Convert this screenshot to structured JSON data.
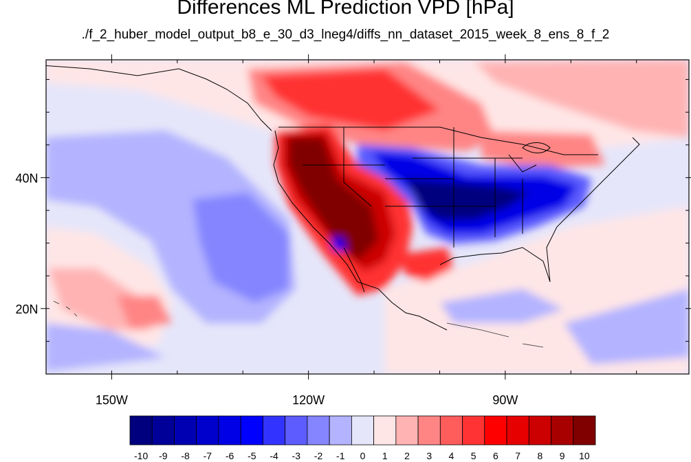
{
  "title": "Differences ML Prediction VPD [hPa]",
  "subtitle": "./f_2_huber_model_output_b8_e_30_d3_lneg4/diffs_nn_dataset_2015_week_8_ens_8_f_2",
  "map": {
    "lon_range": [
      -160,
      -62
    ],
    "lat_range": [
      10,
      58
    ],
    "x_ticks": [
      {
        "value": -150,
        "label": "150W"
      },
      {
        "value": -120,
        "label": "120W"
      },
      {
        "value": -90,
        "label": "90W"
      }
    ],
    "y_ticks": [
      {
        "value": 20,
        "label": "20N"
      },
      {
        "value": 40,
        "label": "40N"
      }
    ]
  },
  "colorbar": {
    "labels": [
      "-10",
      "-9",
      "-8",
      "-7",
      "-6",
      "-5",
      "-4",
      "-3",
      "-2",
      "-1",
      "0",
      "1",
      "2",
      "3",
      "4",
      "5",
      "6",
      "7",
      "8",
      "9",
      "10"
    ],
    "colors": [
      "#00007f",
      "#000099",
      "#0000b3",
      "#0000cc",
      "#0000e6",
      "#0000ff",
      "#3333ff",
      "#5c5cff",
      "#8585ff",
      "#b3b3ff",
      "#e6e6fa",
      "#ffe6e6",
      "#ffb3b3",
      "#ff8585",
      "#ff5c5c",
      "#ff3333",
      "#ff0000",
      "#e60000",
      "#cc0000",
      "#a80000",
      "#800000"
    ]
  },
  "colors": {
    "neutral_pos": "#ffe6e6",
    "neutral_neg": "#e6e6fa",
    "coast": "#000000"
  }
}
